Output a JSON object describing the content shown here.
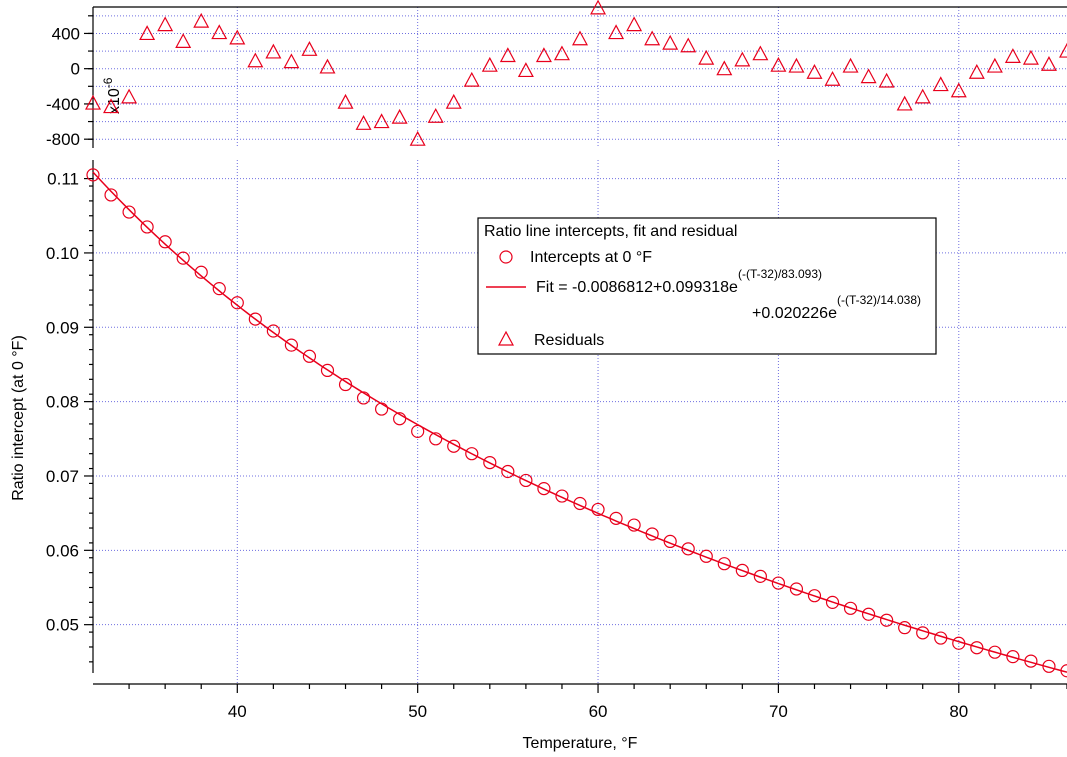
{
  "chart_data": [
    {
      "type": "scatter",
      "name_key": "residuals",
      "ylabel_multiplier": "x10",
      "ylabel_multiplier_exp": "-6",
      "ylim": [
        -900,
        700
      ],
      "yticks": [
        400,
        0,
        -400,
        -800
      ],
      "ytick_labels": [
        "400",
        "0",
        "-400",
        "-800"
      ],
      "grid": true,
      "marker": "triangle",
      "color": "#e8001c",
      "series": [
        {
          "name": "Residuals",
          "x": [
            32,
            33,
            34,
            35,
            36,
            37,
            38,
            39,
            40,
            41,
            42,
            43,
            44,
            45,
            46,
            47,
            48,
            49,
            50,
            51,
            52,
            53,
            54,
            55,
            56,
            57,
            58,
            59,
            60,
            61,
            62,
            63,
            64,
            65,
            66,
            67,
            68,
            69,
            70,
            71,
            72,
            73,
            74,
            75,
            76,
            77,
            78,
            79,
            80,
            81,
            82,
            83,
            84,
            85,
            86
          ],
          "y": [
            -390,
            -430,
            -320,
            400,
            500,
            310,
            540,
            410,
            350,
            90,
            190,
            80,
            220,
            20,
            -380,
            -620,
            -600,
            -550,
            -800,
            -540,
            -380,
            -130,
            40,
            150,
            -20,
            150,
            170,
            340,
            690,
            410,
            500,
            340,
            290,
            260,
            120,
            0,
            100,
            170,
            40,
            30,
            -40,
            -120,
            30,
            -90,
            -140,
            -400,
            -320,
            -180,
            -250,
            -40,
            30,
            140,
            120,
            50,
            200
          ]
        }
      ]
    },
    {
      "type": "scatter",
      "name_key": "intercepts",
      "xlabel": "Temperature, °F",
      "ylabel": "Ratio intercept (at 0 °F)",
      "xlim": [
        32,
        86
      ],
      "ylim": [
        0.0435,
        0.1125
      ],
      "xticks": [
        40,
        50,
        60,
        70,
        80
      ],
      "xtick_labels": [
        "40",
        "50",
        "60",
        "70",
        "80"
      ],
      "yticks": [
        0.11,
        0.1,
        0.09,
        0.08,
        0.07,
        0.06,
        0.05
      ],
      "ytick_labels": [
        "0.11",
        "0.10",
        "0.09",
        "0.08",
        "0.07",
        "0.06",
        "0.05"
      ],
      "grid": true,
      "color": "#e8001c",
      "fit": {
        "a": -0.0086812,
        "b": 0.099318,
        "tau1": 83.093,
        "c": 0.020226,
        "tau2": 14.038,
        "t0": 32
      },
      "series": [
        {
          "name": "Intercepts at 0 °F",
          "marker": "circle",
          "x": [
            32,
            33,
            34,
            35,
            36,
            37,
            38,
            39,
            40,
            41,
            42,
            43,
            44,
            45,
            46,
            47,
            48,
            49,
            50,
            51,
            52,
            53,
            54,
            55,
            56,
            57,
            58,
            59,
            60,
            61,
            62,
            63,
            64,
            65,
            66,
            67,
            68,
            69,
            70,
            71,
            72,
            73,
            74,
            75,
            76,
            77,
            78,
            79,
            80,
            81,
            82,
            83,
            84,
            85,
            86
          ],
          "y": [
            0.1105,
            0.1078,
            0.1055,
            0.1035,
            0.1015,
            0.0993,
            0.0974,
            0.0952,
            0.0933,
            0.0911,
            0.0895,
            0.0876,
            0.0861,
            0.0842,
            0.0823,
            0.0805,
            0.079,
            0.0777,
            0.076,
            0.075,
            0.074,
            0.073,
            0.0718,
            0.0706,
            0.0694,
            0.0683,
            0.0673,
            0.0663,
            0.0655,
            0.0643,
            0.0634,
            0.0622,
            0.0612,
            0.0602,
            0.0592,
            0.0582,
            0.0573,
            0.0565,
            0.0556,
            0.0548,
            0.0539,
            0.053,
            0.0522,
            0.0514,
            0.0506,
            0.0496,
            0.0489,
            0.0482,
            0.0475,
            0.0469,
            0.0463,
            0.0457,
            0.0451,
            0.0444,
            0.0438
          ]
        },
        {
          "name": "Fit",
          "marker": "line"
        }
      ],
      "legend": {
        "title": "Ratio line intercepts, fit and residual",
        "placement": "center-right",
        "entries": [
          {
            "marker": "circle",
            "label": "Intercepts at 0 °F"
          },
          {
            "marker": "line",
            "label": "Fit = -0.0086812+0.099318e",
            "sup": "(-(T-32)/83.093)",
            "label2": "+0.020226e",
            "sup2": "(-(T-32)/14.038)"
          },
          {
            "marker": "triangle",
            "label": "Residuals"
          }
        ]
      }
    }
  ]
}
